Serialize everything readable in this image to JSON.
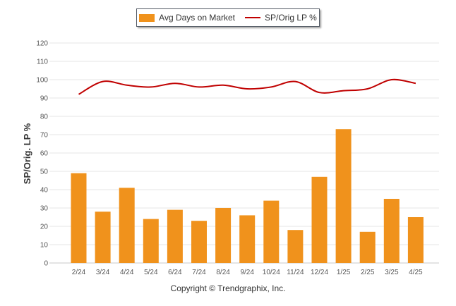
{
  "chart_data": {
    "type": "bar",
    "categories": [
      "2/24",
      "3/24",
      "4/24",
      "5/24",
      "6/24",
      "7/24",
      "8/24",
      "9/24",
      "10/24",
      "11/24",
      "12/24",
      "1/25",
      "2/25",
      "3/25",
      "4/25"
    ],
    "series": [
      {
        "name": "Avg Days on Market",
        "type": "bar",
        "color": "#f0921c",
        "values": [
          49,
          28,
          41,
          24,
          29,
          23,
          30,
          26,
          34,
          18,
          47,
          73,
          17,
          35,
          25
        ]
      },
      {
        "name": "SP/Orig LP %",
        "type": "line",
        "color": "#c00000",
        "values": [
          92,
          99,
          97,
          96,
          98,
          96,
          97,
          95,
          96,
          99,
          93,
          94,
          95,
          100,
          98
        ]
      }
    ],
    "ylabel": "SP/Orig. LP %",
    "ylim": [
      0,
      120
    ],
    "yticks": [
      0,
      10,
      20,
      30,
      40,
      50,
      60,
      70,
      80,
      90,
      100,
      110,
      120
    ],
    "grid": true,
    "legend_position": "top-center"
  },
  "footer": "Copyright © Trendgraphix, Inc."
}
